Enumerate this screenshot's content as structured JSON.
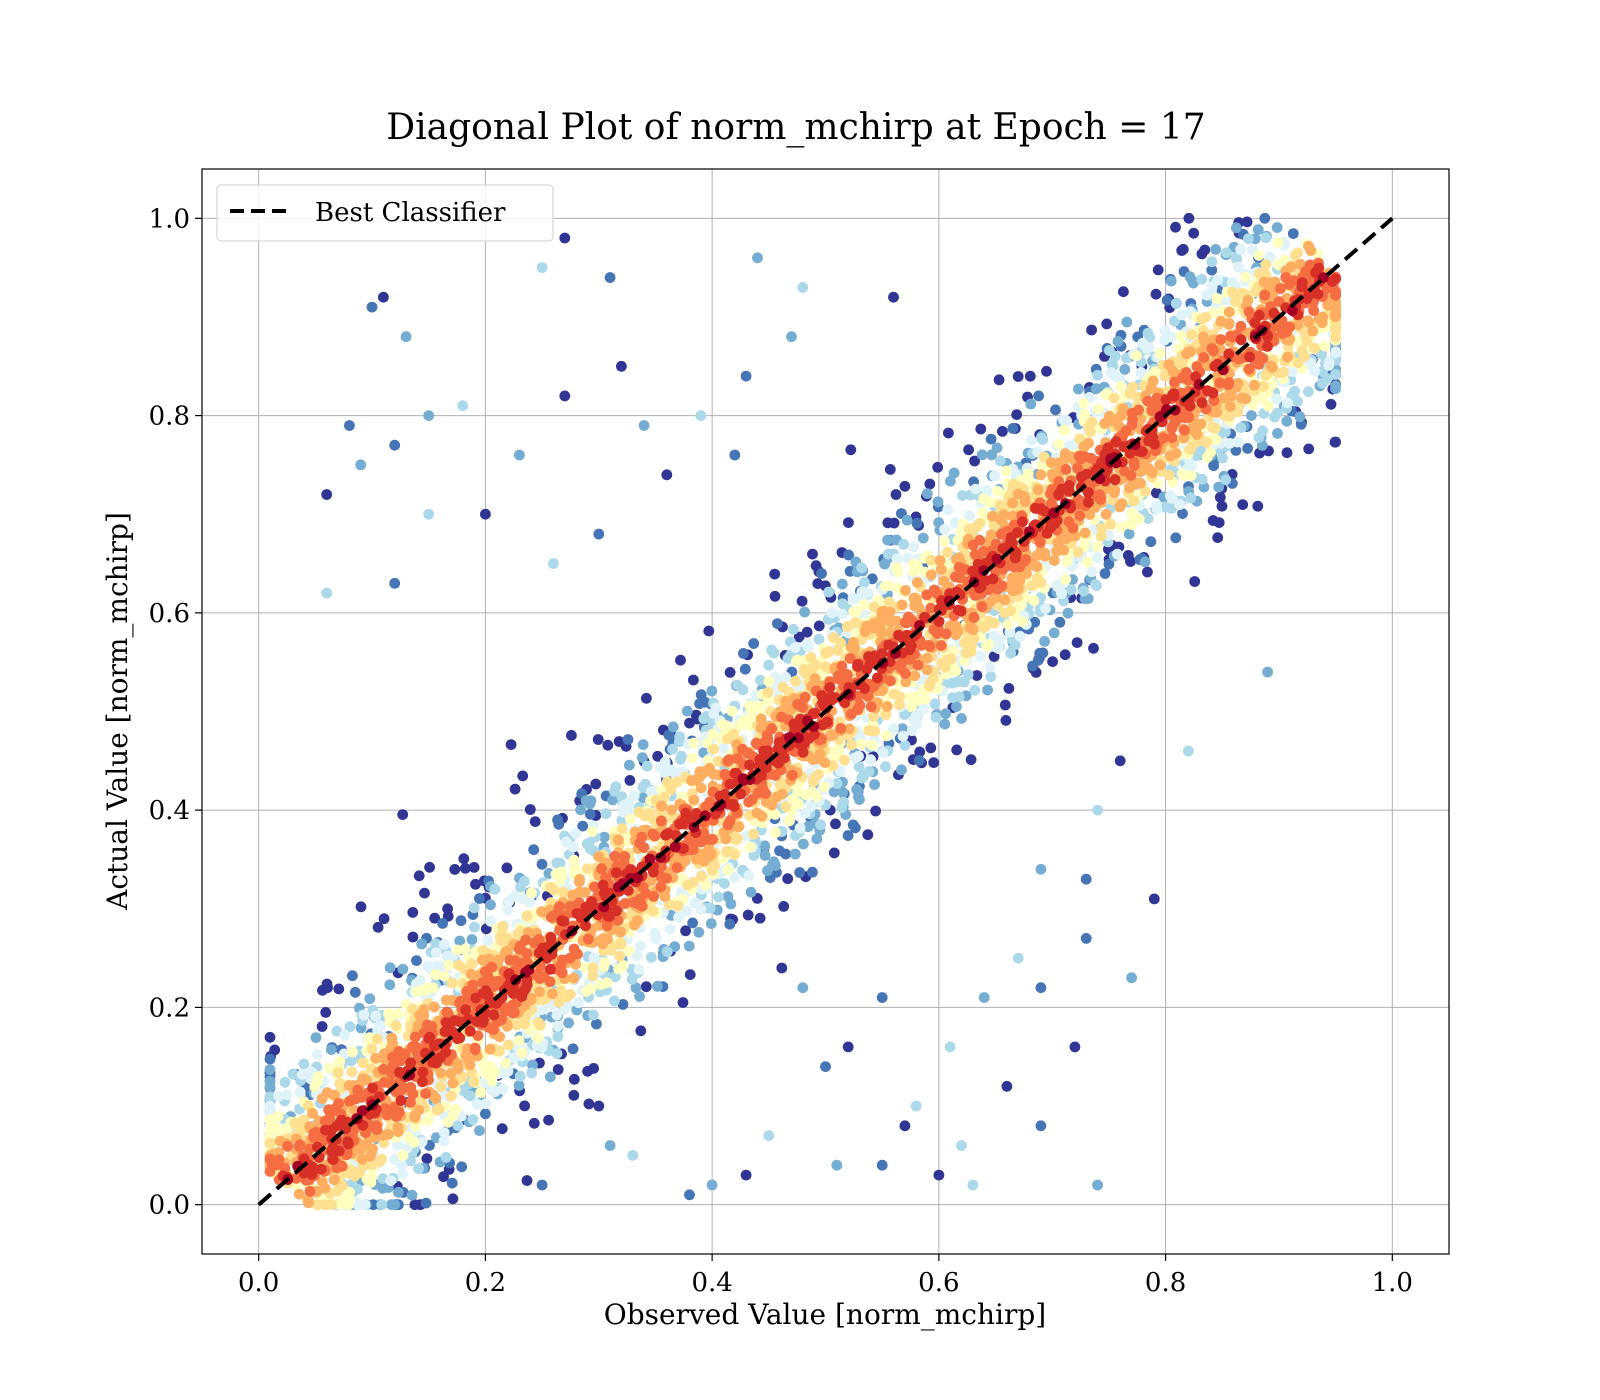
{
  "chart_data": {
    "type": "scatter",
    "title": "Diagonal Plot of norm_mchirp at Epoch = 17",
    "xlabel": "Observed Value [norm_mchirp]",
    "ylabel": "Actual Value [norm_mchirp]",
    "xlim": [
      -0.05,
      1.05
    ],
    "ylim": [
      -0.05,
      1.05
    ],
    "xticks": [
      "0.0",
      "0.2",
      "0.4",
      "0.6",
      "0.8",
      "1.0"
    ],
    "yticks": [
      "0.0",
      "0.2",
      "0.4",
      "0.6",
      "0.8",
      "1.0"
    ],
    "xtick_values": [
      0.0,
      0.2,
      0.4,
      0.6,
      0.8,
      1.0
    ],
    "ytick_values": [
      0.0,
      0.2,
      0.4,
      0.6,
      0.8,
      1.0
    ],
    "grid": true,
    "legend": {
      "position": "top-left",
      "entries": [
        "Best Classifier"
      ]
    },
    "reference_line": {
      "name": "Best Classifier",
      "x": [
        0.0,
        1.0
      ],
      "y": [
        0.0,
        1.0
      ],
      "style": "dashed",
      "color": "#000000"
    },
    "colormap": [
      "#313695",
      "#4575b4",
      "#74add1",
      "#abd9e9",
      "#e0f3f8",
      "#ffffbf",
      "#fee090",
      "#fdae61",
      "#f46d43",
      "#d73027",
      "#a50026"
    ],
    "points": [
      {
        "x": 0.11,
        "y": 0.92
      },
      {
        "x": 0.1,
        "y": 0.91
      },
      {
        "x": 0.13,
        "y": 0.88
      },
      {
        "x": 0.25,
        "y": 0.95
      },
      {
        "x": 0.27,
        "y": 0.98
      },
      {
        "x": 0.31,
        "y": 0.94
      },
      {
        "x": 0.44,
        "y": 0.96
      },
      {
        "x": 0.48,
        "y": 0.93
      },
      {
        "x": 0.56,
        "y": 0.92
      },
      {
        "x": 0.08,
        "y": 0.79
      },
      {
        "x": 0.15,
        "y": 0.8
      },
      {
        "x": 0.18,
        "y": 0.81
      },
      {
        "x": 0.32,
        "y": 0.85
      },
      {
        "x": 0.43,
        "y": 0.84
      },
      {
        "x": 0.47,
        "y": 0.88
      },
      {
        "x": 0.06,
        "y": 0.62
      },
      {
        "x": 0.06,
        "y": 0.72
      },
      {
        "x": 0.12,
        "y": 0.77
      },
      {
        "x": 0.09,
        "y": 0.75
      },
      {
        "x": 0.15,
        "y": 0.7
      },
      {
        "x": 0.2,
        "y": 0.7
      },
      {
        "x": 0.12,
        "y": 0.63
      },
      {
        "x": 0.23,
        "y": 0.76
      },
      {
        "x": 0.26,
        "y": 0.65
      },
      {
        "x": 0.27,
        "y": 0.82
      },
      {
        "x": 0.3,
        "y": 0.68
      },
      {
        "x": 0.34,
        "y": 0.79
      },
      {
        "x": 0.39,
        "y": 0.8
      },
      {
        "x": 0.36,
        "y": 0.74
      },
      {
        "x": 0.42,
        "y": 0.76
      },
      {
        "x": 0.89,
        "y": 0.54
      },
      {
        "x": 0.82,
        "y": 0.46
      },
      {
        "x": 0.79,
        "y": 0.31
      },
      {
        "x": 0.73,
        "y": 0.33
      },
      {
        "x": 0.69,
        "y": 0.34
      },
      {
        "x": 0.74,
        "y": 0.4
      },
      {
        "x": 0.76,
        "y": 0.45
      },
      {
        "x": 0.73,
        "y": 0.27
      },
      {
        "x": 0.77,
        "y": 0.23
      },
      {
        "x": 0.67,
        "y": 0.25
      },
      {
        "x": 0.72,
        "y": 0.16
      },
      {
        "x": 0.69,
        "y": 0.22
      },
      {
        "x": 0.64,
        "y": 0.21
      },
      {
        "x": 0.61,
        "y": 0.16
      },
      {
        "x": 0.66,
        "y": 0.12
      },
      {
        "x": 0.69,
        "y": 0.08
      },
      {
        "x": 0.74,
        "y": 0.02
      },
      {
        "x": 0.62,
        "y": 0.06
      },
      {
        "x": 0.6,
        "y": 0.03
      },
      {
        "x": 0.55,
        "y": 0.04
      },
      {
        "x": 0.51,
        "y": 0.04
      },
      {
        "x": 0.58,
        "y": 0.1
      },
      {
        "x": 0.52,
        "y": 0.16
      },
      {
        "x": 0.55,
        "y": 0.21
      },
      {
        "x": 0.48,
        "y": 0.22
      },
      {
        "x": 0.45,
        "y": 0.07
      },
      {
        "x": 0.43,
        "y": 0.03
      },
      {
        "x": 0.38,
        "y": 0.01
      },
      {
        "x": 0.4,
        "y": 0.02
      },
      {
        "x": 0.33,
        "y": 0.05
      },
      {
        "x": 0.3,
        "y": 0.1
      },
      {
        "x": 0.25,
        "y": 0.02
      },
      {
        "x": 0.31,
        "y": 0.06
      },
      {
        "x": 0.63,
        "y": 0.02
      },
      {
        "x": 0.57,
        "y": 0.08
      },
      {
        "x": 0.5,
        "y": 0.14
      }
    ]
  }
}
